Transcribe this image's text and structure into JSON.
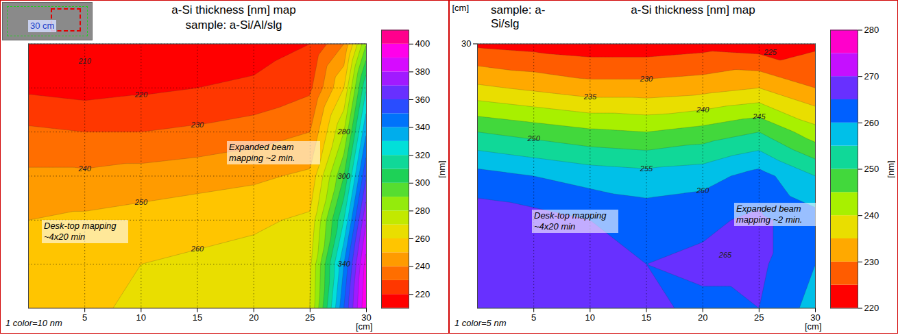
{
  "chart_data": [
    {
      "type": "contour",
      "title": "a-Si thickness [nm] map",
      "subtitle": "sample: a-Si/Al/slg",
      "x": [
        0,
        5,
        10,
        15,
        20,
        25,
        28,
        30
      ],
      "y": [
        30,
        25,
        20,
        15,
        10,
        5,
        0
      ],
      "values": [
        [
          210,
          210,
          210,
          212,
          215,
          220,
          240,
          290
        ],
        [
          218,
          216,
          218,
          220,
          222,
          228,
          260,
          320
        ],
        [
          232,
          230,
          230,
          232,
          235,
          240,
          280,
          340
        ],
        [
          242,
          242,
          244,
          246,
          248,
          252,
          300,
          360
        ],
        [
          250,
          252,
          254,
          256,
          258,
          262,
          320,
          380
        ],
        [
          255,
          258,
          260,
          262,
          264,
          268,
          340,
          395
        ],
        [
          255,
          258,
          262,
          264,
          266,
          270,
          350,
          400
        ]
      ],
      "xlim": [
        0,
        30
      ],
      "ylim": [
        0,
        30
      ],
      "xticks": [
        5,
        10,
        15,
        20,
        25,
        30
      ],
      "yticks": [
        5,
        10,
        15,
        20,
        25,
        30
      ],
      "xlabel": "[cm]",
      "tick_labels": "x",
      "grid": true,
      "colorbar": {
        "range": [
          210,
          410
        ],
        "ticks": [
          220,
          240,
          260,
          280,
          300,
          320,
          340,
          360,
          380,
          400
        ],
        "label": "[nm]",
        "levels": [
          210,
          220,
          230,
          240,
          250,
          260,
          270,
          280,
          290,
          300,
          310,
          320,
          330,
          340,
          350,
          360,
          370,
          380,
          390,
          400,
          410
        ]
      },
      "contour_labels": [
        {
          "x": 5,
          "y": 28,
          "value": 210
        },
        {
          "x": 10,
          "y": 24.2,
          "value": 220
        },
        {
          "x": 15,
          "y": 20.8,
          "value": 230
        },
        {
          "x": 5,
          "y": 15.8,
          "value": 240
        },
        {
          "x": 10,
          "y": 12,
          "value": 250
        },
        {
          "x": 15,
          "y": 6.7,
          "value": 260
        },
        {
          "x": 28,
          "y": 20,
          "value": 280
        },
        {
          "x": 28,
          "y": 15,
          "value": 300
        },
        {
          "x": 28,
          "y": 5,
          "value": 340
        }
      ],
      "annotations": [
        "30 cm",
        "Expanded beam mapping ~2 min.",
        "Desk-top mapping ~4x20 min",
        "1 color=10 nm"
      ]
    },
    {
      "type": "contour",
      "title": "a-Si thickness [nm] map",
      "subtitle": "sample: a-Si/slg",
      "x": [
        0,
        5,
        10,
        15,
        20,
        25,
        30
      ],
      "y": [
        30,
        25,
        20,
        15,
        10,
        5,
        0
      ],
      "values": [
        [
          224,
          223,
          222,
          222,
          223,
          222,
          224
        ],
        [
          236,
          234,
          232,
          232,
          233,
          235,
          230
        ],
        [
          250,
          248,
          246,
          245,
          247,
          250,
          242
        ],
        [
          262,
          260,
          258,
          257,
          258,
          262,
          255
        ],
        [
          268,
          267,
          265,
          263,
          264,
          266,
          262
        ],
        [
          270,
          269,
          267,
          265,
          266,
          266,
          260
        ],
        [
          270,
          270,
          268,
          266,
          264,
          265,
          258
        ]
      ],
      "xlim": [
        0,
        30
      ],
      "ylim": [
        0,
        30
      ],
      "xticks": [
        5,
        10,
        15,
        20,
        25,
        30
      ],
      "yticks": [
        30
      ],
      "xlabel": "[cm]",
      "ylabel": "[cm]",
      "grid": true,
      "colorbar": {
        "range": [
          220,
          280
        ],
        "ticks": [
          220,
          230,
          240,
          250,
          260,
          270,
          280
        ],
        "label": "[nm]",
        "levels": [
          220,
          225,
          230,
          235,
          240,
          245,
          250,
          255,
          260,
          265,
          270,
          275,
          280
        ]
      },
      "contour_labels": [
        {
          "x": 26,
          "y": 29,
          "value": 225
        },
        {
          "x": 15,
          "y": 26,
          "value": 230
        },
        {
          "x": 10,
          "y": 24,
          "value": 235
        },
        {
          "x": 20,
          "y": 22.5,
          "value": 240
        },
        {
          "x": 25,
          "y": 21.7,
          "value": 245
        },
        {
          "x": 5,
          "y": 19.2,
          "value": 250
        },
        {
          "x": 15,
          "y": 15.8,
          "value": 255
        },
        {
          "x": 20,
          "y": 13.3,
          "value": 260
        },
        {
          "x": 22,
          "y": 6,
          "value": 265
        }
      ],
      "annotations": [
        "Expanded beam mapping ~2 min.",
        "Desk-top mapping ~4x20 min",
        "1 color=5 nm"
      ]
    }
  ]
}
